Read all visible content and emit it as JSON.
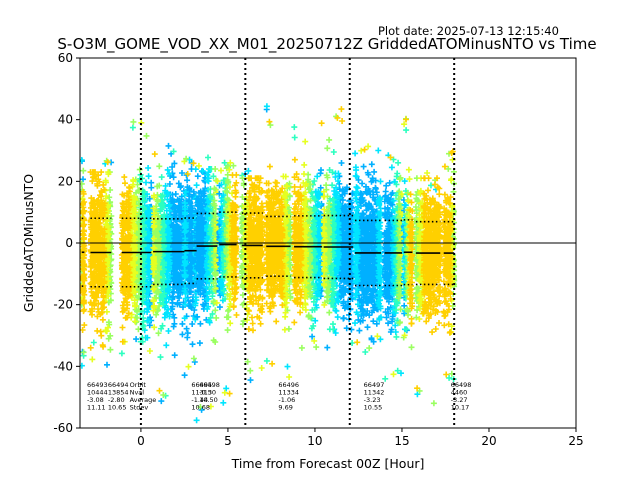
{
  "plot_date": "Plot date: 2025-07-13 12:15:40",
  "chart_data": {
    "type": "scatter",
    "title": "S-O3M_GOME_VOD_XX_M01_20250712Z GriddedATOMinusNTO vs Time",
    "xlabel": "Time from Forecast 00Z [Hour]",
    "ylabel": "GriddedATOMinusNTO",
    "xlim": [
      -3.5,
      25
    ],
    "ylim": [
      -60,
      60
    ],
    "xticks": [
      "0",
      "5",
      "10",
      "15",
      "20",
      "25"
    ],
    "yticks": [
      "-60",
      "-40",
      "-20",
      "0",
      "20",
      "40",
      "60"
    ],
    "grid": false,
    "legend": "none",
    "colorscale": [
      "#00b0ff",
      "#00e5ff",
      "#2cffc0",
      "#9aff60",
      "#e6ff20",
      "#ffd000"
    ],
    "vertical_lines": [
      0,
      6,
      12,
      18
    ],
    "zero_line": 0,
    "swaths": [
      {
        "start": -3.4,
        "end": -3.25,
        "mean": -3.0,
        "std": 11.0,
        "ext_min": -42,
        "ext_max": 28
      },
      {
        "start": -2.9,
        "end": -1.7,
        "mean": -3.08,
        "std": 11.11,
        "ext_min": -40,
        "ext_max": 27
      },
      {
        "start": -1.1,
        "end": 0.6,
        "mean": -3.08,
        "std": 11.11,
        "ext_min": -38,
        "ext_max": 40
      },
      {
        "start": 0.7,
        "end": 2.5,
        "mean": -2.8,
        "std": 10.65,
        "ext_min": -52,
        "ext_max": 33
      },
      {
        "start": 2.5,
        "end": 3.2,
        "mean": -2.5,
        "std": 10.6,
        "ext_min": -45,
        "ext_max": 30
      },
      {
        "start": 3.2,
        "end": 4.4,
        "mean": -1.0,
        "std": 10.6,
        "ext_min": -60,
        "ext_max": 28
      },
      {
        "start": 4.5,
        "end": 5.5,
        "mean": -0.5,
        "std": 10.5,
        "ext_min": -55,
        "ext_max": 30
      },
      {
        "start": 5.8,
        "end": 7.0,
        "mean": -0.8,
        "std": 10.5,
        "ext_min": -45,
        "ext_max": 25
      },
      {
        "start": 7.2,
        "end": 8.6,
        "mean": -1.06,
        "std": 9.69,
        "ext_min": -45,
        "ext_max": 46
      },
      {
        "start": 8.8,
        "end": 10.4,
        "mean": -1.2,
        "std": 10.0,
        "ext_min": -35,
        "ext_max": 40
      },
      {
        "start": 10.5,
        "end": 12.2,
        "mean": -1.3,
        "std": 10.2,
        "ext_min": -34,
        "ext_max": 45
      },
      {
        "start": 12.3,
        "end": 13.8,
        "mean": -3.23,
        "std": 10.55,
        "ext_min": -38,
        "ext_max": 34
      },
      {
        "start": 14.0,
        "end": 15.0,
        "mean": -3.23,
        "std": 10.55,
        "ext_min": -45,
        "ext_max": 30
      },
      {
        "start": 15.1,
        "end": 15.6,
        "mean": -3.0,
        "std": 10.5,
        "ext_min": -34,
        "ext_max": 41
      },
      {
        "start": 15.8,
        "end": 17.2,
        "mean": -3.27,
        "std": 10.17,
        "ext_min": -54,
        "ext_max": 25
      },
      {
        "start": 17.4,
        "end": 18.0,
        "mean": -3.27,
        "std": 10.17,
        "ext_min": -45,
        "ext_max": 31
      }
    ],
    "stats": [
      {
        "x": -3.1,
        "lines": [
          "66493",
          "10444",
          "-3.08",
          "11.11"
        ]
      },
      {
        "x": -0.65,
        "lines": [
          "Orbit",
          "Nval",
          "Average",
          "Stdev"
        ]
      },
      {
        "x": -1.9,
        "lines": [
          "66494",
          "13854",
          "-2.80",
          "10.65"
        ]
      },
      {
        "x": 2.9,
        "lines": [
          "66495",
          "11313",
          "-1.44",
          "10.68"
        ]
      },
      {
        "x": 3.35,
        "lines": [
          "66498",
          "",
          "-0.50",
          "10.50"
        ]
      },
      {
        "x": 7.9,
        "lines": [
          "66496",
          "11334",
          "-1.06",
          "9.69"
        ]
      },
      {
        "x": 12.8,
        "lines": [
          "66497",
          "11342",
          "-3.23",
          "10.55"
        ]
      },
      {
        "x": 17.8,
        "lines": [
          "66498",
          "4460",
          "-3.27",
          "10.17"
        ]
      }
    ]
  }
}
